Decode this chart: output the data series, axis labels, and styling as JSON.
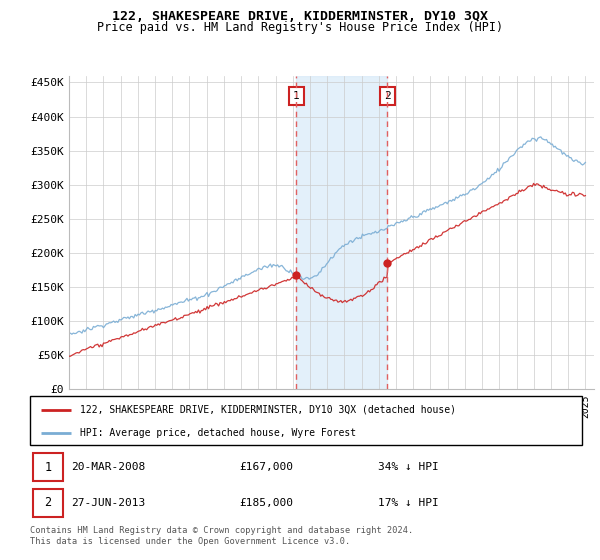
{
  "title": "122, SHAKESPEARE DRIVE, KIDDERMINSTER, DY10 3QX",
  "subtitle": "Price paid vs. HM Land Registry's House Price Index (HPI)",
  "ylabel_ticks": [
    "£0",
    "£50K",
    "£100K",
    "£150K",
    "£200K",
    "£250K",
    "£300K",
    "£350K",
    "£400K",
    "£450K"
  ],
  "ytick_values": [
    0,
    50000,
    100000,
    150000,
    200000,
    250000,
    300000,
    350000,
    400000,
    450000
  ],
  "ylim": [
    0,
    460000
  ],
  "xlim_start": 1995.0,
  "xlim_end": 2025.5,
  "transaction1_date": 2008.21,
  "transaction1_price": 167000,
  "transaction2_date": 2013.49,
  "transaction2_price": 185000,
  "red_line_color": "#cc2222",
  "blue_line_color": "#7aadd4",
  "dashed_line_color": "#e06060",
  "shade_color": "#d8eaf8",
  "legend_label_red": "122, SHAKESPEARE DRIVE, KIDDERMINSTER, DY10 3QX (detached house)",
  "legend_label_blue": "HPI: Average price, detached house, Wyre Forest",
  "footer_text": "Contains HM Land Registry data © Crown copyright and database right 2024.\nThis data is licensed under the Open Government Licence v3.0."
}
